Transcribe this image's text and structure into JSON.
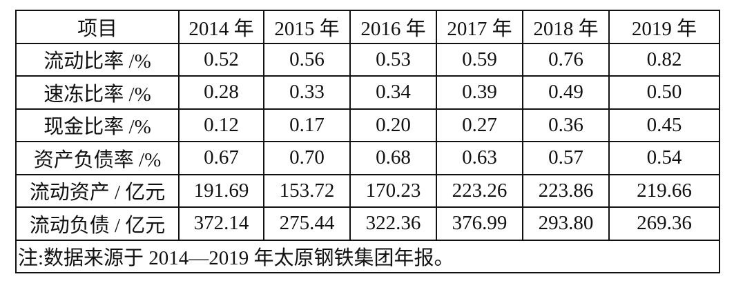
{
  "table": {
    "header": [
      "项目",
      "2014 年",
      "2015 年",
      "2016 年",
      "2017 年",
      "2018 年",
      "2019 年"
    ],
    "rows": [
      [
        "流动比率 /%",
        "0.52",
        "0.56",
        "0.53",
        "0.59",
        "0.76",
        "0.82"
      ],
      [
        "速冻比率 /%",
        "0.28",
        "0.33",
        "0.34",
        "0.39",
        "0.49",
        "0.50"
      ],
      [
        "现金比率 /%",
        "0.12",
        "0.17",
        "0.20",
        "0.27",
        "0.36",
        "0.45"
      ],
      [
        "资产负债率 /%",
        "0.67",
        "0.70",
        "0.68",
        "0.63",
        "0.57",
        "0.54"
      ],
      [
        "流动资产 / 亿元",
        "191.69",
        "153.72",
        "170.23",
        "223.26",
        "223.86",
        "219.66"
      ],
      [
        "流动负债 / 亿元",
        "372.14",
        "275.44",
        "322.36",
        "376.99",
        "293.80",
        "269.36"
      ]
    ],
    "note": "注:数据来源于 2014—2019 年太原钢铁集团年报。"
  }
}
